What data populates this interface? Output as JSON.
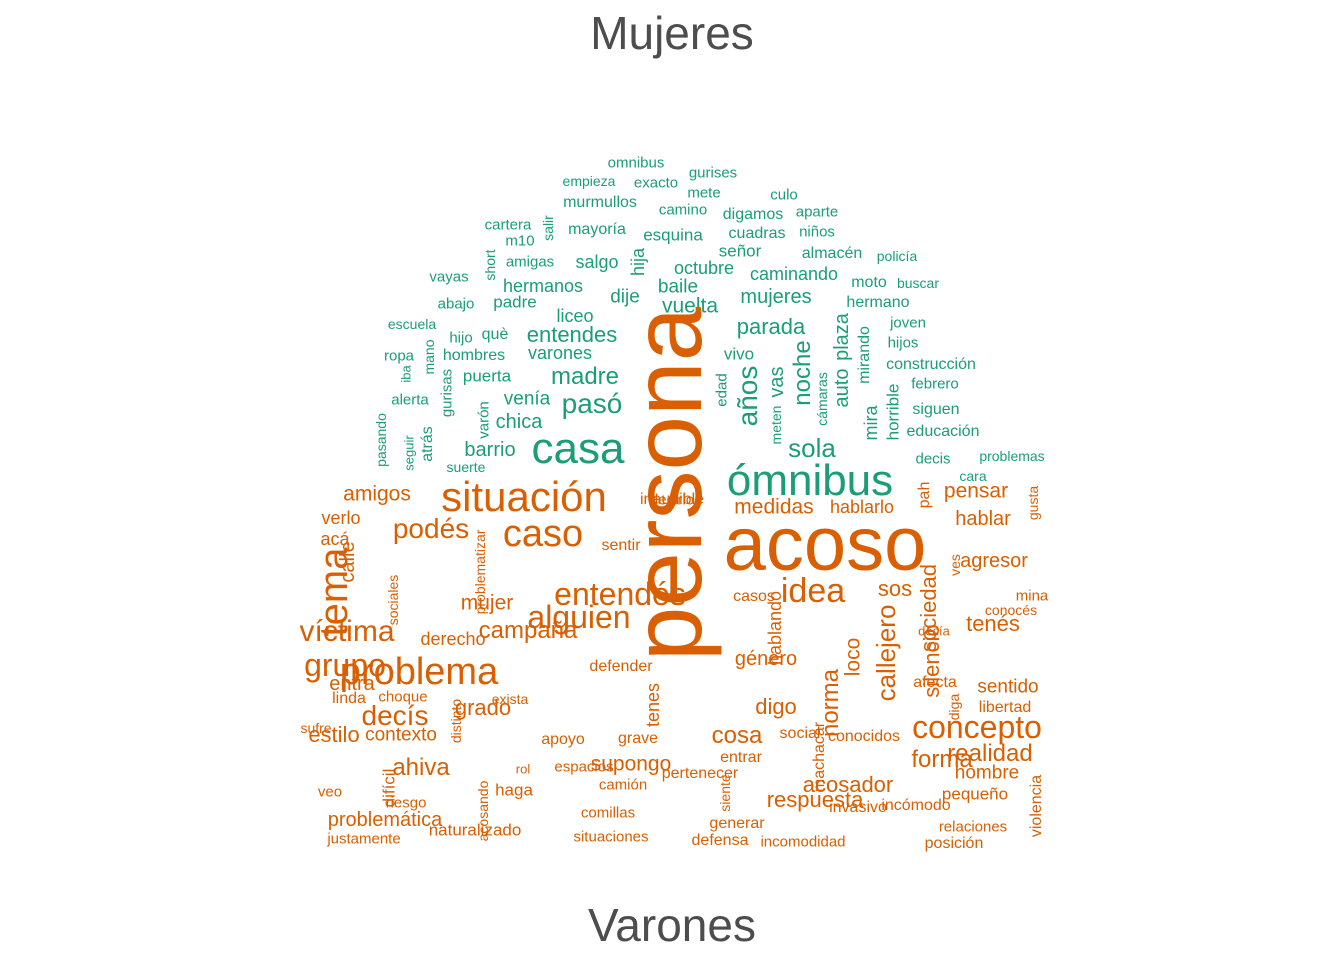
{
  "titles": {
    "top": "Mujeres",
    "bottom": "Varones"
  },
  "colors": {
    "mujeres": "#1b9e77",
    "varones": "#d95f02"
  },
  "words": [
    {
      "t": "omnibus",
      "g": "m",
      "s": 15
    },
    {
      "t": "gurises",
      "g": "m",
      "s": 15
    },
    {
      "t": "empieza",
      "g": "m",
      "s": 14
    },
    {
      "t": "exacto",
      "g": "m",
      "s": 15
    },
    {
      "t": "mete",
      "g": "m",
      "s": 15
    },
    {
      "t": "culo",
      "g": "m",
      "s": 15
    },
    {
      "t": "murmullos",
      "g": "m",
      "s": 16
    },
    {
      "t": "camino",
      "g": "m",
      "s": 15
    },
    {
      "t": "digamos",
      "g": "m",
      "s": 16
    },
    {
      "t": "aparte",
      "g": "m",
      "s": 15
    },
    {
      "t": "cartera",
      "g": "m",
      "s": 15
    },
    {
      "t": "salir",
      "g": "m",
      "s": 14,
      "r": 1
    },
    {
      "t": "m10",
      "g": "m",
      "s": 15
    },
    {
      "t": "mayoría",
      "g": "m",
      "s": 16
    },
    {
      "t": "esquina",
      "g": "m",
      "s": 17
    },
    {
      "t": "cuadras",
      "g": "m",
      "s": 16
    },
    {
      "t": "niños",
      "g": "m",
      "s": 15
    },
    {
      "t": "short",
      "g": "m",
      "s": 14,
      "r": 1
    },
    {
      "t": "amigas",
      "g": "m",
      "s": 15
    },
    {
      "t": "salgo",
      "g": "m",
      "s": 18
    },
    {
      "t": "hija",
      "g": "m",
      "s": 18,
      "r": 1
    },
    {
      "t": "señor",
      "g": "m",
      "s": 17
    },
    {
      "t": "almacén",
      "g": "m",
      "s": 16
    },
    {
      "t": "policía",
      "g": "m",
      "s": 14
    },
    {
      "t": "vayas",
      "g": "m",
      "s": 15
    },
    {
      "t": "hermanos",
      "g": "m",
      "s": 18
    },
    {
      "t": "octubre",
      "g": "m",
      "s": 18
    },
    {
      "t": "caminando",
      "g": "m",
      "s": 18
    },
    {
      "t": "moto",
      "g": "m",
      "s": 16
    },
    {
      "t": "buscar",
      "g": "m",
      "s": 14
    },
    {
      "t": "abajo",
      "g": "m",
      "s": 15
    },
    {
      "t": "padre",
      "g": "m",
      "s": 17
    },
    {
      "t": "baile",
      "g": "m",
      "s": 19
    },
    {
      "t": "dije",
      "g": "m",
      "s": 19
    },
    {
      "t": "vuelta",
      "g": "m",
      "s": 21
    },
    {
      "t": "mujeres",
      "g": "m",
      "s": 20
    },
    {
      "t": "hermano",
      "g": "m",
      "s": 16
    },
    {
      "t": "escuela",
      "g": "m",
      "s": 14
    },
    {
      "t": "liceo",
      "g": "m",
      "s": 18
    },
    {
      "t": "joven",
      "g": "m",
      "s": 15
    },
    {
      "t": "hijo",
      "g": "m",
      "s": 15
    },
    {
      "t": "què",
      "g": "m",
      "s": 16
    },
    {
      "t": "entendes",
      "g": "m",
      "s": 22
    },
    {
      "t": "parada",
      "g": "m",
      "s": 22
    },
    {
      "t": "hijos",
      "g": "m",
      "s": 15
    },
    {
      "t": "ropa",
      "g": "m",
      "s": 15
    },
    {
      "t": "mano",
      "g": "m",
      "s": 14,
      "r": 1
    },
    {
      "t": "hombres",
      "g": "m",
      "s": 16
    },
    {
      "t": "varones",
      "g": "m",
      "s": 18
    },
    {
      "t": "vivo",
      "g": "m",
      "s": 17
    },
    {
      "t": "noche",
      "g": "m",
      "s": 24,
      "r": 1
    },
    {
      "t": "auto",
      "g": "m",
      "s": 20,
      "r": 1
    },
    {
      "t": "plaza",
      "g": "m",
      "s": 20,
      "r": 1
    },
    {
      "t": "mirando",
      "g": "m",
      "s": 16,
      "r": 1
    },
    {
      "t": "construcción",
      "g": "m",
      "s": 16
    },
    {
      "t": "iba",
      "g": "m",
      "s": 13,
      "r": 1
    },
    {
      "t": "gurisas",
      "g": "m",
      "s": 15,
      "r": 1
    },
    {
      "t": "puerta",
      "g": "m",
      "s": 17
    },
    {
      "t": "madre",
      "g": "m",
      "s": 24
    },
    {
      "t": "edad",
      "g": "m",
      "s": 15,
      "r": 1
    },
    {
      "t": "años",
      "g": "m",
      "s": 28,
      "r": 1
    },
    {
      "t": "vas",
      "g": "m",
      "s": 20,
      "r": 1
    },
    {
      "t": "cámaras",
      "g": "m",
      "s": 14,
      "r": 1
    },
    {
      "t": "febrero",
      "g": "m",
      "s": 15
    },
    {
      "t": "alerta",
      "g": "m",
      "s": 15
    },
    {
      "t": "venía",
      "g": "m",
      "s": 19
    },
    {
      "t": "pasó",
      "g": "m",
      "s": 28
    },
    {
      "t": "meten",
      "g": "m",
      "s": 14,
      "r": 1
    },
    {
      "t": "mira",
      "g": "m",
      "s": 18,
      "r": 1
    },
    {
      "t": "horrible",
      "g": "m",
      "s": 17,
      "r": 1
    },
    {
      "t": "siguen",
      "g": "m",
      "s": 16
    },
    {
      "t": "pasando",
      "g": "m",
      "s": 14,
      "r": 1
    },
    {
      "t": "atrás",
      "g": "m",
      "s": 16,
      "r": 1
    },
    {
      "t": "varón",
      "g": "m",
      "s": 15,
      "r": 1
    },
    {
      "t": "chica",
      "g": "m",
      "s": 20
    },
    {
      "t": "educación",
      "g": "m",
      "s": 16
    },
    {
      "t": "seguir",
      "g": "m",
      "s": 13,
      "r": 1
    },
    {
      "t": "barrio",
      "g": "m",
      "s": 20
    },
    {
      "t": "casa",
      "g": "m",
      "s": 44
    },
    {
      "t": "sola",
      "g": "m",
      "s": 26
    },
    {
      "t": "decis",
      "g": "m",
      "s": 15
    },
    {
      "t": "problemas",
      "g": "m",
      "s": 14
    },
    {
      "t": "suerte",
      "g": "m",
      "s": 14
    },
    {
      "t": "cara",
      "g": "m",
      "s": 14
    },
    {
      "t": "ómnibus",
      "g": "m",
      "s": 44
    },
    {
      "t": "persona",
      "g": "v",
      "s": 98,
      "r": 1
    },
    {
      "t": "amigos",
      "g": "v",
      "s": 21
    },
    {
      "t": "situación",
      "g": "v",
      "s": 42
    },
    {
      "t": "pensar",
      "g": "v",
      "s": 21
    },
    {
      "t": "pah",
      "g": "v",
      "s": 16,
      "r": 1
    },
    {
      "t": "gusta",
      "g": "v",
      "s": 14,
      "r": 1
    },
    {
      "t": "medidas",
      "g": "v",
      "s": 21
    },
    {
      "t": "hablarlo",
      "g": "v",
      "s": 18
    },
    {
      "t": "verlo",
      "g": "v",
      "s": 18
    },
    {
      "t": "podés",
      "g": "v",
      "s": 28
    },
    {
      "t": "caso",
      "g": "v",
      "s": 38
    },
    {
      "t": "hablar",
      "g": "v",
      "s": 20
    },
    {
      "t": "acoso",
      "g": "v",
      "s": 76
    },
    {
      "t": "acá",
      "g": "v",
      "s": 18
    },
    {
      "t": "sentir",
      "g": "v",
      "s": 16
    },
    {
      "t": "ves",
      "g": "v",
      "s": 14,
      "r": 1
    },
    {
      "t": "calle",
      "g": "v",
      "s": 20,
      "r": 1
    },
    {
      "t": "agresor",
      "g": "v",
      "s": 20
    },
    {
      "t": "mina",
      "g": "v",
      "s": 15
    },
    {
      "t": "problematizar",
      "g": "v",
      "s": 14,
      "r": 1
    },
    {
      "t": "entendés",
      "g": "v",
      "s": 32
    },
    {
      "t": "tema",
      "g": "v",
      "s": 40,
      "r": 1
    },
    {
      "t": "casos",
      "g": "v",
      "s": 16
    },
    {
      "t": "idea",
      "g": "v",
      "s": 34
    },
    {
      "t": "sos",
      "g": "v",
      "s": 22
    },
    {
      "t": "conocés",
      "g": "v",
      "s": 14
    },
    {
      "t": "sociales",
      "g": "v",
      "s": 14,
      "r": 1
    },
    {
      "t": "mujer",
      "g": "v",
      "s": 21
    },
    {
      "t": "alguien",
      "g": "v",
      "s": 32
    },
    {
      "t": "loco",
      "g": "v",
      "s": 21,
      "r": 1
    },
    {
      "t": "callejero",
      "g": "v",
      "s": 26,
      "r": 1
    },
    {
      "t": "sociedad",
      "g": "v",
      "s": 22,
      "r": 1
    },
    {
      "t": "tenés",
      "g": "v",
      "s": 22
    },
    {
      "t": "hablando",
      "g": "v",
      "s": 18,
      "r": 1
    },
    {
      "t": "víctima",
      "g": "v",
      "s": 30
    },
    {
      "t": "derecho",
      "g": "v",
      "s": 18
    },
    {
      "t": "campaña",
      "g": "v",
      "s": 24
    },
    {
      "t": "decía",
      "g": "v",
      "s": 13
    },
    {
      "t": "género",
      "g": "v",
      "s": 20
    },
    {
      "t": "grupo",
      "g": "v",
      "s": 32
    },
    {
      "t": "defender",
      "g": "v",
      "s": 16
    },
    {
      "t": "problema",
      "g": "v",
      "s": 38
    },
    {
      "t": "grado",
      "g": "v",
      "s": 22
    },
    {
      "t": "silencio",
      "g": "v",
      "s": 22,
      "r": 1
    },
    {
      "t": "entra",
      "g": "v",
      "s": 20
    },
    {
      "t": "afecta",
      "g": "v",
      "s": 16
    },
    {
      "t": "sentido",
      "g": "v",
      "s": 19
    },
    {
      "t": "choque",
      "g": "v",
      "s": 15
    },
    {
      "t": "linda",
      "g": "v",
      "s": 16
    },
    {
      "t": "exista",
      "g": "v",
      "s": 14
    },
    {
      "t": "norma",
      "g": "v",
      "s": 24,
      "r": 1
    },
    {
      "t": "diga",
      "g": "v",
      "s": 14,
      "r": 1
    },
    {
      "t": "libertad",
      "g": "v",
      "s": 16
    },
    {
      "t": "sufre",
      "g": "v",
      "s": 14
    },
    {
      "t": "distinto",
      "g": "v",
      "s": 14,
      "r": 1
    },
    {
      "t": "tenes",
      "g": "v",
      "s": 18,
      "r": 1
    },
    {
      "t": "digo",
      "g": "v",
      "s": 22
    },
    {
      "t": "concepto",
      "g": "v",
      "s": 32
    },
    {
      "t": "decís",
      "g": "v",
      "s": 28
    },
    {
      "t": "social",
      "g": "v",
      "s": 16
    },
    {
      "t": "conocidos",
      "g": "v",
      "s": 16
    },
    {
      "t": "estilo",
      "g": "v",
      "s": 22
    },
    {
      "t": "contexto",
      "g": "v",
      "s": 19
    },
    {
      "t": "apoyo",
      "g": "v",
      "s": 16
    },
    {
      "t": "grave",
      "g": "v",
      "s": 16
    },
    {
      "t": "cosa",
      "g": "v",
      "s": 24
    },
    {
      "t": "forma",
      "g": "v",
      "s": 24
    },
    {
      "t": "entrar",
      "g": "v",
      "s": 16
    },
    {
      "t": "machacar",
      "g": "v",
      "s": 16,
      "r": 1
    },
    {
      "t": "realidad",
      "g": "v",
      "s": 24
    },
    {
      "t": "supongo",
      "g": "v",
      "s": 21
    },
    {
      "t": "espacios",
      "g": "v",
      "s": 15
    },
    {
      "t": "ahiva",
      "g": "v",
      "s": 24
    },
    {
      "t": "rol",
      "g": "v",
      "s": 13
    },
    {
      "t": "pertenecer",
      "g": "v",
      "s": 16
    },
    {
      "t": "hombre",
      "g": "v",
      "s": 19
    },
    {
      "t": "veo",
      "g": "v",
      "s": 15
    },
    {
      "t": "camión",
      "g": "v",
      "s": 15
    },
    {
      "t": "siente",
      "g": "v",
      "s": 14,
      "r": 1
    },
    {
      "t": "respuesta",
      "g": "v",
      "s": 22
    },
    {
      "t": "acosador",
      "g": "v",
      "s": 22
    },
    {
      "t": "difícil",
      "g": "v",
      "s": 17,
      "r": 1
    },
    {
      "t": "haga",
      "g": "v",
      "s": 17
    },
    {
      "t": "incómodo",
      "g": "v",
      "s": 16
    },
    {
      "t": "pequeño",
      "g": "v",
      "s": 17
    },
    {
      "t": "violencia",
      "g": "v",
      "s": 16,
      "r": 1
    },
    {
      "t": "riesgo",
      "g": "v",
      "s": 15
    },
    {
      "t": "acosando",
      "g": "v",
      "s": 14,
      "r": 1
    },
    {
      "t": "comillas",
      "g": "v",
      "s": 15
    },
    {
      "t": "invasivo",
      "g": "v",
      "s": 16
    },
    {
      "t": "problemática",
      "g": "v",
      "s": 20
    },
    {
      "t": "generar",
      "g": "v",
      "s": 16
    },
    {
      "t": "relaciones",
      "g": "v",
      "s": 15
    },
    {
      "t": "naturalizado",
      "g": "v",
      "s": 17
    },
    {
      "t": "situaciones",
      "g": "v",
      "s": 15
    },
    {
      "t": "justamente",
      "g": "v",
      "s": 15
    },
    {
      "t": "defensa",
      "g": "v",
      "s": 16
    },
    {
      "t": "incomodidad",
      "g": "v",
      "s": 15
    },
    {
      "t": "posición",
      "g": "v",
      "s": 16
    },
    {
      "t": "inaudible",
      "g": "v",
      "s": 16
    },
    {
      "t": "decirlo",
      "g": "v",
      "s": 15
    }
  ]
}
